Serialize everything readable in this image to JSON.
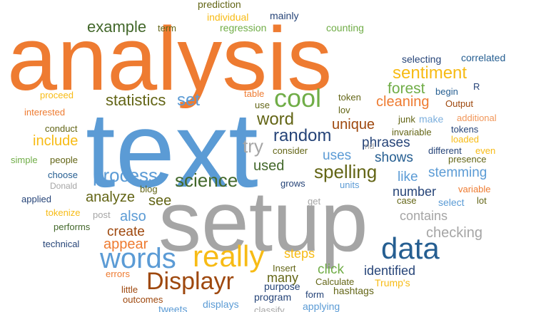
{
  "colors": {
    "orange": "#ee7b31",
    "blue": "#5b9bd5",
    "gray": "#a5a5a5",
    "yellow": "#f7bb15",
    "green": "#70ad47",
    "navy": "#264478",
    "brown": "#9e480e",
    "olive": "#636516",
    "darkgreen": "#43682b",
    "darkblue": "#255e91",
    "lightgreen": "#8fbc5a",
    "lightblue": "#7cafdd",
    "salmon": "#f1975a"
  },
  "words": [
    {
      "text": "analysis",
      "color": "orange"
    },
    {
      "text": "text",
      "color": "blue"
    },
    {
      "text": "setup",
      "color": "gray"
    },
    {
      "text": "words",
      "color": "blue"
    },
    {
      "text": "really",
      "color": "yellow"
    },
    {
      "text": "data",
      "color": "darkblue"
    },
    {
      "text": "Displayr",
      "color": "brown"
    },
    {
      "text": "cool",
      "color": "green"
    },
    {
      "text": "science",
      "color": "darkgreen"
    },
    {
      "text": "process",
      "color": "blue"
    },
    {
      "text": "random",
      "color": "navy"
    },
    {
      "text": "word",
      "color": "olive"
    },
    {
      "text": "spelling",
      "color": "olive"
    },
    {
      "text": "sentiment",
      "color": "yellow"
    },
    {
      "text": "example",
      "color": "darkgreen"
    },
    {
      "text": "statistics",
      "color": "olive"
    },
    {
      "text": "set",
      "color": "blue"
    },
    {
      "text": "try",
      "color": "gray"
    },
    {
      "text": "unique",
      "color": "brown"
    },
    {
      "text": "forest",
      "color": "green"
    },
    {
      "text": "cleaning",
      "color": "orange"
    },
    {
      "text": "include",
      "color": "yellow"
    },
    {
      "text": "analyze",
      "color": "olive"
    },
    {
      "text": "see",
      "color": "olive"
    },
    {
      "text": "also",
      "color": "blue"
    },
    {
      "text": "create",
      "color": "brown"
    },
    {
      "text": "appear",
      "color": "orange"
    },
    {
      "text": "used",
      "color": "darkgreen"
    },
    {
      "text": "uses",
      "color": "blue"
    },
    {
      "text": "phrases",
      "color": "navy"
    },
    {
      "text": "shows",
      "color": "darkblue"
    },
    {
      "text": "like",
      "color": "blue"
    },
    {
      "text": "number",
      "color": "navy"
    },
    {
      "text": "stemming",
      "color": "blue"
    },
    {
      "text": "contains",
      "color": "gray"
    },
    {
      "text": "checking",
      "color": "gray"
    },
    {
      "text": "steps",
      "color": "yellow"
    },
    {
      "text": "click",
      "color": "green"
    },
    {
      "text": "identified",
      "color": "navy"
    },
    {
      "text": "many",
      "color": "olive"
    },
    {
      "text": "prediction",
      "color": "olive"
    },
    {
      "text": "individual",
      "color": "yellow"
    },
    {
      "text": "regression",
      "color": "green"
    },
    {
      "text": "mainly",
      "color": "navy"
    },
    {
      "text": "counting",
      "color": "green"
    },
    {
      "text": "term",
      "color": "olive"
    },
    {
      "text": "selecting",
      "color": "navy"
    },
    {
      "text": "correlated",
      "color": "darkblue"
    },
    {
      "text": "begin",
      "color": "darkblue"
    },
    {
      "text": "R",
      "color": "navy"
    },
    {
      "text": "token",
      "color": "olive"
    },
    {
      "text": "lov",
      "color": "olive"
    },
    {
      "text": "table",
      "color": "orange"
    },
    {
      "text": "use",
      "color": "olive"
    },
    {
      "text": "proceed",
      "color": "yellow"
    },
    {
      "text": "interested",
      "color": "orange"
    },
    {
      "text": "conduct",
      "color": "olive"
    },
    {
      "text": "simple",
      "color": "green"
    },
    {
      "text": "people",
      "color": "olive"
    },
    {
      "text": "choose",
      "color": "darkblue"
    },
    {
      "text": "Donald",
      "color": "gray"
    },
    {
      "text": "applied",
      "color": "navy"
    },
    {
      "text": "tokenize",
      "color": "yellow"
    },
    {
      "text": "performs",
      "color": "darkgreen"
    },
    {
      "text": "technical",
      "color": "navy"
    },
    {
      "text": "post",
      "color": "gray"
    },
    {
      "text": "blog",
      "color": "olive"
    },
    {
      "text": "errors",
      "color": "orange"
    },
    {
      "text": "little",
      "color": "brown"
    },
    {
      "text": "outcomes",
      "color": "brown"
    },
    {
      "text": "tweets",
      "color": "blue"
    },
    {
      "text": "Output",
      "color": "brown"
    },
    {
      "text": "junk",
      "color": "olive"
    },
    {
      "text": "make",
      "color": "lightblue"
    },
    {
      "text": "additional",
      "color": "salmon"
    },
    {
      "text": "invariable",
      "color": "olive"
    },
    {
      "text": "tokens",
      "color": "navy"
    },
    {
      "text": "loaded",
      "color": "yellow"
    },
    {
      "text": "different",
      "color": "navy"
    },
    {
      "text": "even",
      "color": "yellow"
    },
    {
      "text": "presence",
      "color": "olive"
    },
    {
      "text": "rid",
      "color": "gray"
    },
    {
      "text": "consider",
      "color": "olive"
    },
    {
      "text": "grows",
      "color": "navy"
    },
    {
      "text": "units",
      "color": "blue"
    },
    {
      "text": "get",
      "color": "gray"
    },
    {
      "text": "case",
      "color": "olive"
    },
    {
      "text": "select",
      "color": "blue"
    },
    {
      "text": "lot",
      "color": "olive"
    },
    {
      "text": "variable",
      "color": "orange"
    },
    {
      "text": "Insert",
      "color": "olive"
    },
    {
      "text": "Calculate",
      "color": "olive"
    },
    {
      "text": "Trump's",
      "color": "yellow"
    },
    {
      "text": "purpose",
      "color": "navy"
    },
    {
      "text": "program",
      "color": "navy"
    },
    {
      "text": "form",
      "color": "navy"
    },
    {
      "text": "hashtags",
      "color": "olive"
    },
    {
      "text": "displays",
      "color": "blue"
    },
    {
      "text": "classify",
      "color": "gray"
    },
    {
      "text": "applying",
      "color": "blue"
    }
  ]
}
